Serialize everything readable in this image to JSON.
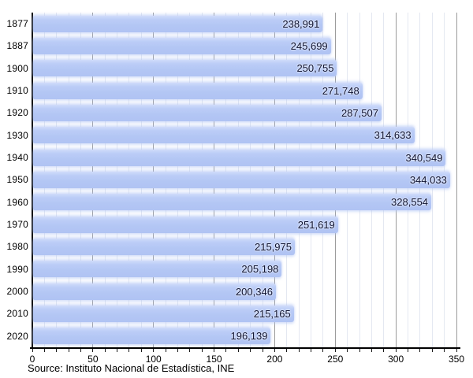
{
  "chart_data": {
    "type": "bar",
    "orientation": "horizontal",
    "title": "",
    "xlabel": "",
    "ylabel": "",
    "categories": [
      "1877",
      "1887",
      "1900",
      "1910",
      "1920",
      "1930",
      "1940",
      "1950",
      "1960",
      "1970",
      "1980",
      "1990",
      "2000",
      "2010",
      "2020"
    ],
    "values": [
      238991,
      245699,
      250755,
      271748,
      287507,
      314633,
      340549,
      344033,
      328554,
      251619,
      215975,
      205198,
      200346,
      215165,
      196139
    ],
    "value_labels": [
      "238,991",
      "245,699",
      "250,755",
      "271,748",
      "287,507",
      "314,633",
      "340,549",
      "344,033",
      "328,554",
      "251,619",
      "215,975",
      "205,198",
      "200,346",
      "215,165",
      "196,139"
    ],
    "xlim": [
      0,
      350
    ],
    "x_major_ticks": [
      0,
      50,
      100,
      150,
      200,
      250,
      300,
      350
    ],
    "x_minor_tick_step": 10,
    "x_axis_value_divisor": 1000,
    "grid": true,
    "legend": false
  },
  "source_note": "Source: Instituto Nacional de Estadística, INE",
  "colors": {
    "bar_fill": "#b3c6f4",
    "bar_fill_highlight": "#d0dcfa",
    "bar_value_text": "#0d1130",
    "axis_line": "#000000",
    "major_gridline": "#9b9b9b",
    "minor_gridline": "#e4e8f1",
    "tick_label": "#000000",
    "background": "#ffffff"
  }
}
